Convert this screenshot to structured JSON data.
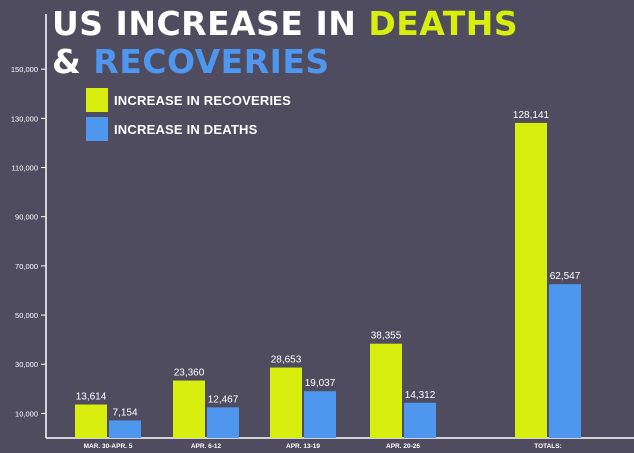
{
  "colors": {
    "recoveries": "#d7ee0f",
    "deaths": "#4f96ee",
    "text": "#ffffff",
    "axis": "#ffffff",
    "background": "#4f4c5f"
  },
  "title": {
    "line1_part1": "US INCREASE IN",
    "line1_part2": "DEATHS",
    "line2_part1": "&",
    "line2_part2": "RECOVERIES"
  },
  "chart_data": {
    "type": "bar",
    "title": "US INCREASE IN DEATHS & RECOVERIES",
    "categories": [
      "MAR. 30-APR. 5",
      "APR. 6-12",
      "APR. 13-19",
      "APR. 20-26",
      "TOTALS:"
    ],
    "series": [
      {
        "name": "INCREASE IN RECOVERIES",
        "labels": [
          "13,614",
          "23,360",
          "28,653",
          "38,355",
          "128,141"
        ],
        "values": [
          13614,
          23360,
          28653,
          38355,
          128141
        ]
      },
      {
        "name": "INCREASE IN DEATHS",
        "labels": [
          "7,154",
          "12,467",
          "19,037",
          "14,312",
          "62,547"
        ],
        "values": [
          7154,
          12467,
          19037,
          14312,
          62547
        ]
      }
    ],
    "y_ticks": [
      10000,
      30000,
      50000,
      70000,
      90000,
      110000,
      130000,
      150000
    ],
    "y_tick_labels": [
      "10,000",
      "30,000",
      "50,000",
      "70,000",
      "90,000",
      "110,000",
      "130,000",
      "150,000"
    ],
    "ylim": [
      0,
      170000
    ],
    "grid": false,
    "legend": "top-left"
  }
}
